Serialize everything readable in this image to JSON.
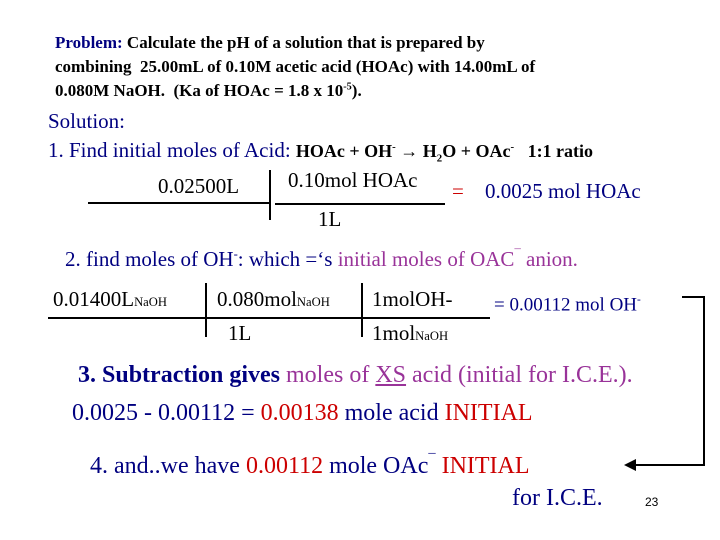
{
  "problem": {
    "label": "Problem:",
    "line1": "Calculate the pH of a solution that is prepared by",
    "line2": "combining  25.00mL of 0.10M acetic acid (HOAc) with 14.00mL of",
    "line3": "0.080M NaOH.  (Ka of HOAc = 1.8 x 10",
    "ka_exp": "-5",
    "line3_end": ")."
  },
  "solution": "Solution:",
  "step1": {
    "text": "1. Find initial moles of Acid:",
    "eq_a": "HOAc + OH",
    "eq_a_sup": "-",
    "arrow": "→",
    "eq_b": "H",
    "eq_b_sub": "2",
    "eq_c": "O + OAc",
    "eq_c_sup": "-",
    "ratio": "1:1 ratio"
  },
  "calc1": {
    "volume": "0.02500L",
    "numerator": "0.10mol HOAc",
    "denominator": "1L",
    "equals": "=",
    "result": "0.0025 mol HOAc"
  },
  "step2": {
    "a": "2. find moles of OH",
    "a_sup": "-",
    "b": ": which =‘s ",
    "c": "initial moles of OAC",
    "c_sup": "¯",
    "d": " anion."
  },
  "calc2": {
    "volume": "0.01400L",
    "volume_unit": "NaOH",
    "conc": "0.080mol",
    "conc_unit": "NaOH",
    "ratio_num": "1molOH-",
    "den1": "1L",
    "den2": "1mol",
    "den2_unit": "NaOH",
    "result": "= 0.00112 mol OH",
    "result_sup": "-"
  },
  "step3": {
    "a": "3. Subtraction gives ",
    "b": "moles of ",
    "c": "XS",
    "d": " acid (initial for I.C.E.)."
  },
  "step3_calc": {
    "a": "0.0025 - 0.00112 = ",
    "b": "0.00138",
    "c": " mole acid ",
    "d": "INITIAL"
  },
  "step4": {
    "a": "4. and..we have ",
    "b": "0.00112",
    "c": " mole OAc",
    "c_sup": "¯",
    "d": " INITIAL",
    "e": "for I.C.E."
  },
  "page_number": "23"
}
